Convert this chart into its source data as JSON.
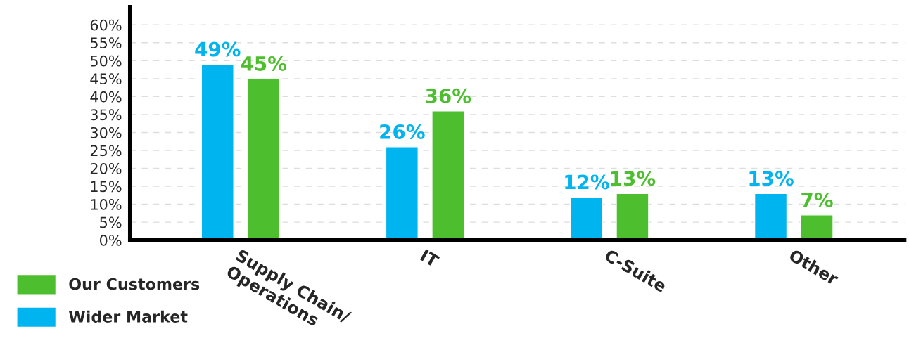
{
  "chart_data": {
    "type": "bar",
    "categories": [
      "Supply Chain/\nOperations",
      "IT",
      "C-Suite",
      "Other"
    ],
    "series": [
      {
        "name": "Wider Market",
        "color": "#00b4f0",
        "values": [
          49,
          26,
          12,
          13
        ],
        "value_labels": [
          "49%",
          "26%",
          "12%",
          "13%"
        ]
      },
      {
        "name": "Our Customers",
        "color": "#4dbf2e",
        "values": [
          45,
          36,
          13,
          7
        ],
        "value_labels": [
          "45%",
          "36%",
          "13%",
          "7%"
        ]
      }
    ],
    "ylim": [
      0,
      65
    ],
    "yticks": [
      {
        "value": 0,
        "label": "0%"
      },
      {
        "value": 5,
        "label": "5%"
      },
      {
        "value": 10,
        "label": "10%"
      },
      {
        "value": 15,
        "label": "15%"
      },
      {
        "value": 20,
        "label": "20%"
      },
      {
        "value": 25,
        "label": "25%"
      },
      {
        "value": 30,
        "label": "30%"
      },
      {
        "value": 35,
        "label": "35%"
      },
      {
        "value": 40,
        "label": "40%"
      },
      {
        "value": 45,
        "label": "45%"
      },
      {
        "value": 50,
        "label": "50%"
      },
      {
        "value": 55,
        "label": "55%"
      },
      {
        "value": 60,
        "label": "60%"
      }
    ],
    "grid": "y",
    "legend": "bottom left"
  }
}
